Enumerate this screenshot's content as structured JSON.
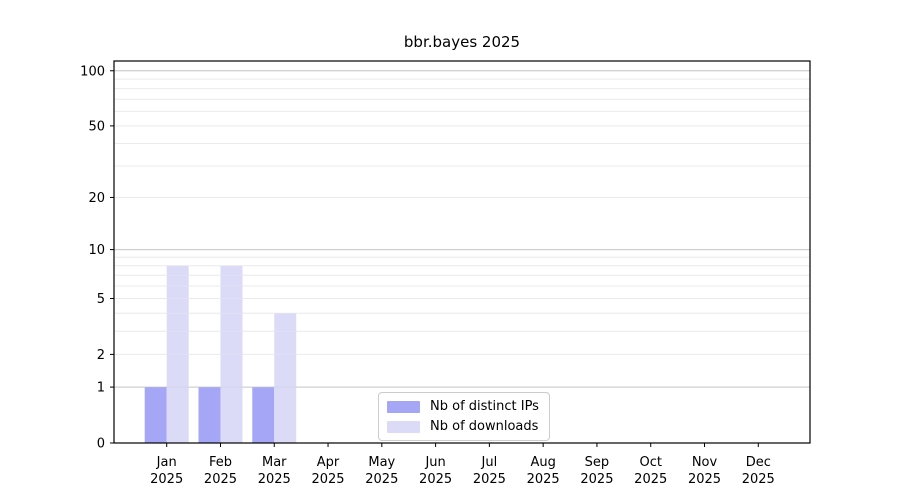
{
  "chart_data": {
    "type": "bar",
    "title": "bbr.bayes 2025",
    "month_labels": [
      "Jan",
      "Feb",
      "Mar",
      "Apr",
      "May",
      "Jun",
      "Jul",
      "Aug",
      "Sep",
      "Oct",
      "Nov",
      "Dec"
    ],
    "year_label": "2025",
    "series": [
      {
        "name": "Nb of distinct IPs",
        "color": "#a6a6f7",
        "values": [
          1,
          1,
          1,
          0,
          0,
          0,
          0,
          0,
          0,
          0,
          0,
          0
        ]
      },
      {
        "name": "Nb of downloads",
        "color": "#dbdbf8",
        "values": [
          8,
          8,
          4,
          0,
          0,
          0,
          0,
          0,
          0,
          0,
          0,
          0
        ]
      }
    ],
    "y_scale": "log1p",
    "y_ticks": [
      0,
      1,
      2,
      5,
      10,
      20,
      50,
      100
    ],
    "y_major_gridlines": [
      1,
      10,
      100
    ],
    "y_minor_gridlines": [
      2,
      3,
      4,
      5,
      6,
      7,
      8,
      9,
      20,
      30,
      40,
      50,
      60,
      70,
      80,
      90
    ],
    "ylim": [
      0,
      113
    ],
    "grid": "horizontal",
    "legend_position": "lower-center",
    "colors": {
      "axis": "#000000",
      "major_grid": "#c9c9c9",
      "minor_grid": "#ececec",
      "tick_label": "#000000"
    }
  }
}
